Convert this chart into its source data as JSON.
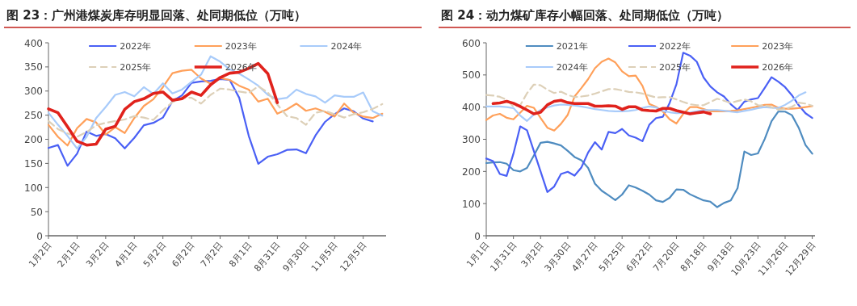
{
  "chart_data": [
    {
      "type": "line",
      "title": "图 23：广州港煤炭库存明显回落、处同期低位（万吨）",
      "legend": "top",
      "grid": false,
      "categories": [
        "1月2日",
        null,
        null,
        "2月1日",
        null,
        null,
        "3月2日",
        null,
        null,
        "4月1日",
        null,
        null,
        "5月2日",
        null,
        null,
        "6月2日",
        null,
        null,
        "7月2日",
        null,
        null,
        "8月1日",
        null,
        null,
        "8月31日",
        null,
        null,
        "9月30日",
        null,
        null,
        "11月5日",
        null,
        null,
        "12月5日",
        null,
        null
      ],
      "ylim": [
        0,
        400
      ],
      "yticks": [
        0,
        50,
        100,
        150,
        200,
        250,
        300,
        350,
        400
      ],
      "series": [
        {
          "name": "2022年",
          "color": "#4a60f5",
          "values": [
            182,
            188,
            145,
            170,
            216,
            207,
            211,
            202,
            181,
            203,
            229,
            234,
            245,
            279,
            291,
            317,
            320,
            321,
            325,
            323,
            286,
            207,
            149,
            164,
            169,
            178,
            179,
            171,
            208,
            236,
            252,
            264,
            258,
            243,
            237,
            null
          ]
        },
        {
          "name": "2023年",
          "color": "#ffa05a",
          "values": [
            230,
            205,
            187,
            223,
            242,
            235,
            210,
            225,
            213,
            244,
            269,
            283,
            308,
            337,
            342,
            344,
            326,
            315,
            327,
            323,
            311,
            303,
            278,
            284,
            253,
            262,
            274,
            259,
            264,
            257,
            247,
            274,
            255,
            247,
            244,
            253
          ]
        },
        {
          "name": "2024年",
          "color": "#a8cbfa",
          "values": [
            255,
            230,
            207,
            181,
            205,
            244,
            267,
            292,
            298,
            289,
            308,
            294,
            316,
            295,
            303,
            319,
            334,
            372,
            361,
            345,
            336,
            324,
            311,
            292,
            283,
            286,
            303,
            294,
            289,
            276,
            291,
            288,
            288,
            297,
            258,
            249
          ]
        },
        {
          "name": "2025年",
          "color": "#ddd0b8",
          "line_style": "dashed",
          "values": [
            238,
            221,
            212,
            205,
            215,
            229,
            234,
            238,
            241,
            248,
            245,
            240,
            260,
            277,
            286,
            286,
            274,
            292,
            305,
            303,
            299,
            296,
            310,
            297,
            272,
            248,
            244,
            230,
            255,
            259,
            252,
            245,
            252,
            256,
            263,
            273
          ]
        },
        {
          "name": "2026年",
          "color": "#e0221c",
          "values": [
            263,
            255,
            226,
            196,
            188,
            190,
            221,
            227,
            262,
            278,
            284,
            295,
            298,
            281,
            284,
            298,
            291,
            313,
            328,
            337,
            339,
            347,
            357,
            336,
            276,
            null,
            null,
            null,
            null,
            null,
            null,
            null,
            null,
            null,
            null,
            null
          ]
        }
      ]
    },
    {
      "type": "line",
      "title": "图 24：动力煤矿库存小幅回落、处同期低位（万吨）",
      "legend": "top",
      "grid": false,
      "categories": [
        "1月1日",
        null,
        null,
        null,
        "1月31日",
        null,
        null,
        null,
        "3月2日",
        null,
        null,
        null,
        "3月30日",
        null,
        null,
        null,
        "4月27日",
        null,
        null,
        null,
        "5月25日",
        null,
        null,
        null,
        "6月22日",
        null,
        null,
        null,
        "7月20日",
        null,
        null,
        null,
        "8月18日",
        null,
        null,
        null,
        "9月18日",
        null,
        null,
        null,
        "10月23日",
        null,
        null,
        null,
        "11月26日",
        null,
        null,
        null,
        "12月29日"
      ],
      "ylim": [
        0,
        600
      ],
      "yticks": [
        0,
        100,
        200,
        300,
        400,
        500,
        600
      ],
      "series": [
        {
          "name": "2021年",
          "color": "#4f8cc0",
          "values": [
            226,
            228,
            229,
            224,
            204,
            200,
            211,
            249,
            289,
            292,
            287,
            281,
            264,
            245,
            235,
            211,
            162,
            140,
            126,
            111,
            128,
            157,
            150,
            140,
            128,
            110,
            105,
            118,
            144,
            143,
            129,
            119,
            110,
            106,
            89,
            102,
            110,
            148,
            262,
            251,
            256,
            301,
            356,
            386,
            386,
            375,
            336,
            282,
            255
          ]
        },
        {
          "name": "2022年",
          "color": "#4a60f5",
          "values": [
            240,
            232,
            192,
            186,
            255,
            340,
            328,
            264,
            200,
            136,
            153,
            192,
            199,
            187,
            212,
            259,
            291,
            268,
            323,
            319,
            332,
            312,
            305,
            294,
            345,
            366,
            370,
            413,
            471,
            569,
            560,
            541,
            492,
            464,
            446,
            433,
            409,
            391,
            417,
            424,
            428,
            460,
            493,
            479,
            462,
            437,
            406,
            381,
            366
          ]
        },
        {
          "name": "2023年",
          "color": "#ffa05a",
          "values": [
            360,
            374,
            379,
            367,
            362,
            383,
            404,
            398,
            366,
            336,
            327,
            348,
            376,
            433,
            459,
            487,
            521,
            541,
            551,
            539,
            511,
            496,
            498,
            466,
            410,
            401,
            386,
            362,
            349,
            379,
            400,
            400,
            394,
            387,
            387,
            387,
            388,
            390,
            394,
            398,
            402,
            407,
            408,
            398,
            395,
            395,
            397,
            400,
            403
          ]
        },
        {
          "name": "2024年",
          "color": "#a8cbfa",
          "values": [
            402,
            402,
            402,
            400,
            397,
            374,
            357,
            377,
            391,
            399,
            405,
            408,
            407,
            405,
            402,
            398,
            394,
            391,
            388,
            387,
            387,
            388,
            391,
            398,
            402,
            399,
            388,
            384,
            381,
            382,
            383,
            387,
            391,
            391,
            391,
            389,
            386,
            384,
            388,
            392,
            397,
            400,
            398,
            397,
            407,
            420,
            436,
            446,
            null
          ]
        },
        {
          "name": "2025年",
          "color": "#ddd0b8",
          "line_style": "dashed",
          "values": [
            438,
            436,
            432,
            423,
            402,
            406,
            443,
            470,
            468,
            454,
            444,
            448,
            438,
            431,
            433,
            436,
            442,
            449,
            456,
            456,
            452,
            447,
            446,
            442,
            436,
            430,
            431,
            431,
            424,
            416,
            409,
            406,
            406,
            416,
            426,
            420,
            413,
            419,
            424,
            418,
            406,
            405,
            400,
            392,
            394,
            401,
            414,
            411,
            404
          ]
        },
        {
          "name": "2026年",
          "color": "#e0221c",
          "values": [
            null,
            411,
            413,
            418,
            412,
            402,
            391,
            379,
            384,
            407,
            418,
            421,
            414,
            411,
            411,
            411,
            403,
            403,
            404,
            403,
            393,
            401,
            401,
            391,
            389,
            388,
            396,
            396,
            389,
            384,
            379,
            382,
            385,
            379,
            null,
            null,
            null,
            null,
            null,
            null,
            null,
            null,
            null,
            null,
            null,
            null,
            null,
            null,
            null
          ]
        }
      ]
    }
  ]
}
